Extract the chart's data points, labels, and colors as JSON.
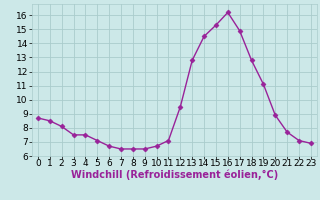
{
  "x": [
    0,
    1,
    2,
    3,
    4,
    5,
    6,
    7,
    8,
    9,
    10,
    11,
    12,
    13,
    14,
    15,
    16,
    17,
    18,
    19,
    20,
    21,
    22,
    23
  ],
  "y": [
    8.7,
    8.5,
    8.1,
    7.5,
    7.5,
    7.1,
    6.7,
    6.5,
    6.5,
    6.5,
    6.7,
    7.1,
    9.5,
    12.8,
    14.5,
    15.3,
    16.2,
    14.9,
    12.8,
    11.1,
    8.9,
    7.7,
    7.1,
    6.9
  ],
  "line_color": "#992299",
  "marker": "D",
  "marker_size": 2.5,
  "xlabel": "Windchill (Refroidissement éolien,°C)",
  "ylim": [
    6,
    16.8
  ],
  "xlim": [
    -0.5,
    23.5
  ],
  "yticks": [
    6,
    7,
    8,
    9,
    10,
    11,
    12,
    13,
    14,
    15,
    16
  ],
  "xticks": [
    0,
    1,
    2,
    3,
    4,
    5,
    6,
    7,
    8,
    9,
    10,
    11,
    12,
    13,
    14,
    15,
    16,
    17,
    18,
    19,
    20,
    21,
    22,
    23
  ],
  "bg_color": "#cce8e8",
  "grid_color": "#aacccc",
  "label_fontsize": 7,
  "tick_fontsize": 6.5,
  "linewidth": 1.0
}
